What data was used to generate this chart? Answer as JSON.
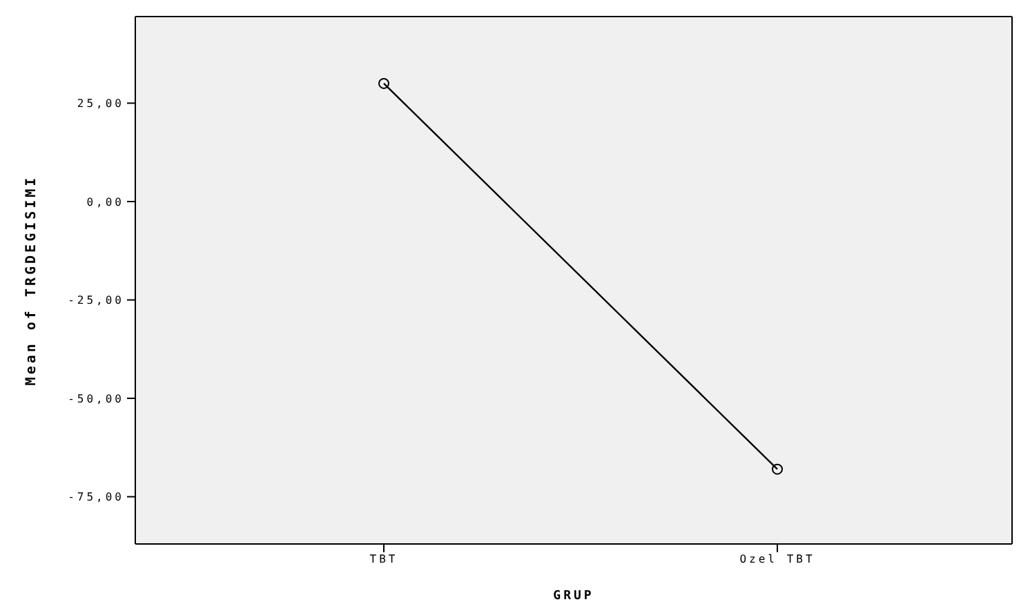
{
  "chart_data": {
    "type": "line",
    "xlabel": "GRUP",
    "ylabel": "Mean of TRGDEGISIMI",
    "categories": [
      "TBT",
      "Ozel TBT"
    ],
    "series": [
      {
        "color": "#000000",
        "values": [
          30,
          -68
        ]
      }
    ],
    "ylim": [
      -87,
      47
    ],
    "yticks": [
      {
        "value": -75,
        "label": "-75,00"
      },
      {
        "value": -50,
        "label": "-50,00"
      },
      {
        "value": -25,
        "label": "-25,00"
      },
      {
        "value": 0,
        "label": "0,00"
      },
      {
        "value": 25,
        "label": "25,00"
      }
    ],
    "grid": false,
    "legend": false,
    "marker": "circle",
    "line_style": "solid"
  }
}
